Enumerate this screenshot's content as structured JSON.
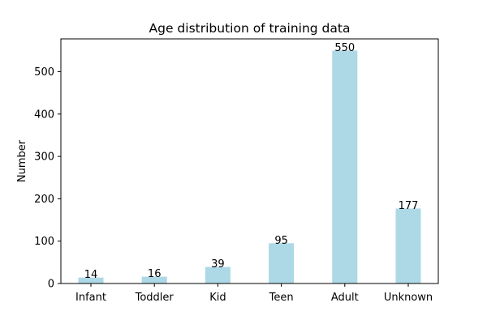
{
  "chart_data": {
    "type": "bar",
    "title": "Age distribution of training data",
    "xlabel": "",
    "ylabel": "Number",
    "categories": [
      "Infant",
      "Toddler",
      "Kid",
      "Teen",
      "Adult",
      "Unknown"
    ],
    "values": [
      14,
      16,
      39,
      95,
      550,
      177
    ],
    "data_labels": [
      "14",
      "16",
      "39",
      "95",
      "550",
      "177"
    ],
    "ylim": [
      0,
      577.5
    ],
    "yticks": [
      0,
      100,
      200,
      300,
      400,
      500
    ],
    "ytick_labels": [
      "0",
      "100",
      "200",
      "300",
      "400",
      "500"
    ],
    "grid": false,
    "legend": "none",
    "bar_color": "#add8e6",
    "axis_color": "#000000"
  }
}
